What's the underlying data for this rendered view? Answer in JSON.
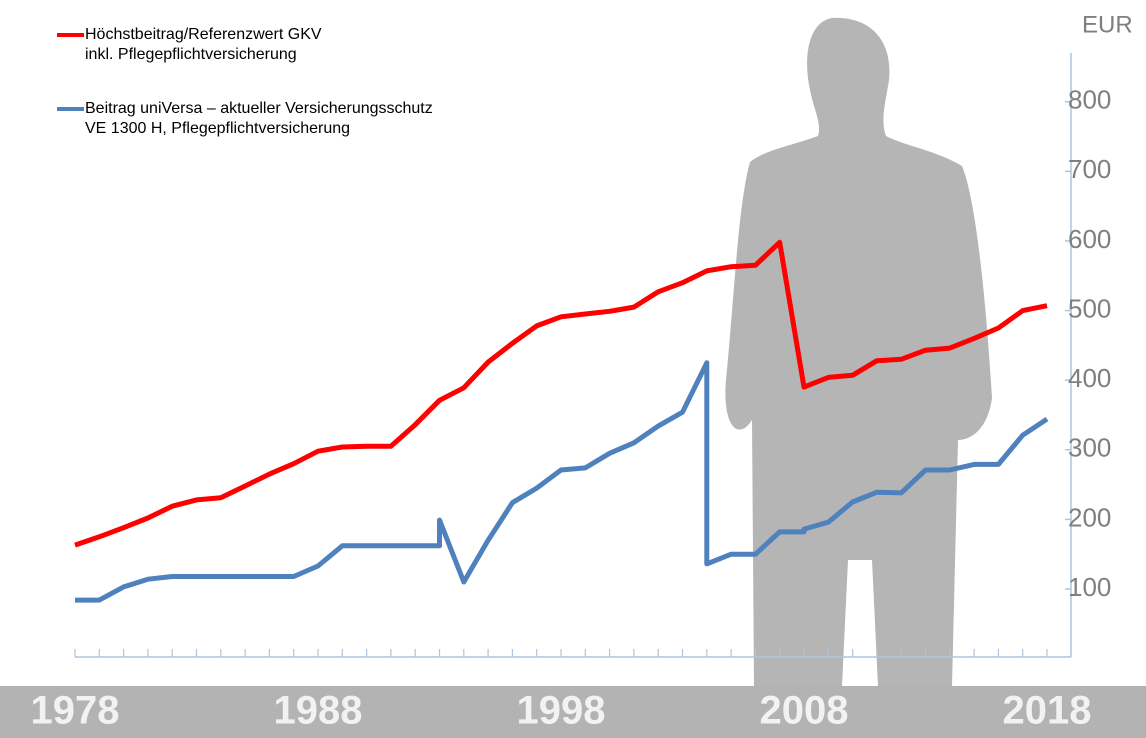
{
  "chart_data": {
    "type": "line",
    "y_unit": "EUR",
    "xlim": [
      1978,
      2018
    ],
    "xticks": [
      1978,
      1988,
      1998,
      2008,
      2018
    ],
    "xticks_minor": [
      1978,
      1979,
      1980,
      1981,
      1982,
      1983,
      1984,
      1985,
      1986,
      1987,
      1988,
      1989,
      1990,
      1991,
      1992,
      1993,
      1994,
      1995,
      1996,
      1997,
      1998,
      1999,
      2000,
      2001,
      2002,
      2003,
      2004,
      2005,
      2006,
      2007,
      2008,
      2009,
      2010,
      2011,
      2012,
      2013,
      2014,
      2015,
      2016,
      2017,
      2018
    ],
    "ylim": [
      0,
      870
    ],
    "yticks": [
      100,
      200,
      300,
      400,
      500,
      600,
      700,
      800
    ],
    "series": [
      {
        "name": [
          "Höchstbeitrag/Referenzwert GKV",
          "inkl. Pflegepflichtversicherung"
        ],
        "color": "#ff0000",
        "x": [
          1978,
          1979,
          1980,
          1981,
          1982,
          1983,
          1984,
          1985,
          1986,
          1987,
          1988,
          1989,
          1990,
          1991,
          1992,
          1993,
          1994,
          1995,
          1996,
          1997,
          1998,
          1999,
          2000,
          2001,
          2002,
          2003,
          2004,
          2005,
          2006,
          2007,
          2008,
          2009,
          2010,
          2011,
          2012,
          2013,
          2014,
          2015,
          2016,
          2017,
          2018
        ],
        "values": [
          163,
          175,
          188,
          202,
          219,
          228,
          231,
          248,
          265,
          280,
          298,
          304,
          305,
          305,
          336,
          371,
          389,
          426,
          453,
          478,
          491,
          495,
          499,
          505,
          527,
          540,
          557,
          563,
          565,
          598,
          390,
          404,
          407,
          428,
          430,
          443,
          446,
          460,
          475,
          500,
          507
        ]
      },
      {
        "name": [
          "Beitrag uniVersa – aktueller Versicherungsschutz",
          "VE 1300 H, Pflegepflichtversicherung"
        ],
        "color": "#4f81bd",
        "x": [
          1978,
          1979,
          1980,
          1981,
          1982,
          1983,
          1984,
          1985,
          1986,
          1987,
          1988,
          1989,
          1990,
          1991,
          1992,
          1993,
          1993,
          1994,
          1995,
          1996,
          1997,
          1998,
          1999,
          2000,
          2001,
          2002,
          2003,
          2004,
          2004,
          2005,
          2006,
          2007,
          2008,
          2008,
          2009,
          2010,
          2011,
          2012,
          2013,
          2014,
          2015,
          2016,
          2017,
          2018
        ],
        "values": [
          84,
          84,
          103,
          114,
          118,
          118,
          118,
          118,
          118,
          118,
          133,
          162,
          162,
          162,
          162,
          162,
          199,
          110,
          170,
          224,
          245,
          271,
          274,
          295,
          310,
          334,
          354,
          425,
          136,
          150,
          150,
          182,
          182,
          186,
          196,
          225,
          239,
          238,
          271,
          271,
          279,
          279,
          321,
          344
        ]
      }
    ]
  }
}
